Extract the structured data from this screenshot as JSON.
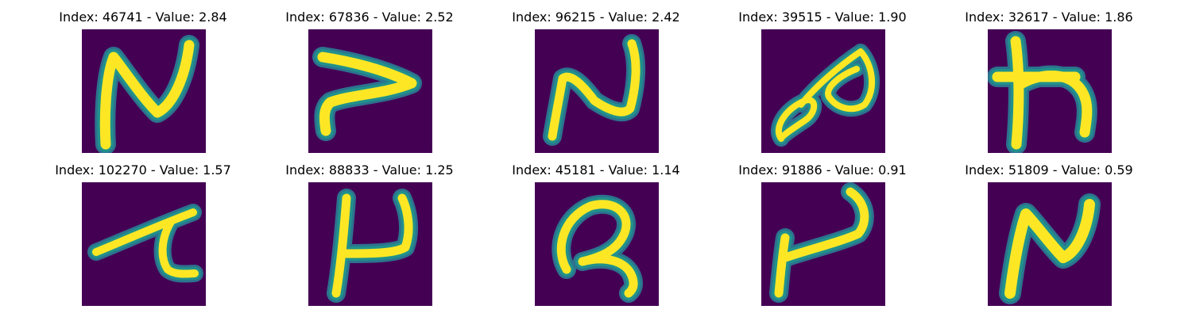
{
  "colors": {
    "background": "#440154",
    "stroke_core": "#fde725",
    "stroke_edge": "#21918c",
    "stroke_halo": "#2c728e"
  },
  "images": [
    {
      "title": "Index: 46741 - Value: 2.84",
      "glyph": "N"
    },
    {
      "title": "Index: 67836 - Value: 2.52",
      "glyph": "J"
    },
    {
      "title": "Index: 96215 - Value: 2.42",
      "glyph": "N"
    },
    {
      "title": "Index: 39515 - Value: 1.90",
      "glyph": "Ø"
    },
    {
      "title": "Index: 32617 - Value: 1.86",
      "glyph": "h"
    },
    {
      "title": "Index: 102270 - Value: 1.57",
      "glyph": "Z"
    },
    {
      "title": "Index: 88833 - Value: 1.25",
      "glyph": "P"
    },
    {
      "title": "Index: 45181 - Value: 1.14",
      "glyph": "R"
    },
    {
      "title": "Index: 91886 - Value: 0.91",
      "glyph": "P"
    },
    {
      "title": "Index: 51809 - Value: 0.59",
      "glyph": "N"
    }
  ]
}
